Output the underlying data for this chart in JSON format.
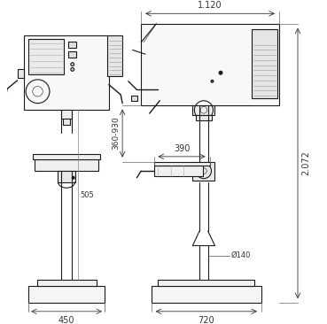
{
  "bg_color": "#ffffff",
  "line_color": "#1a1a1a",
  "dim_color": "#333333",
  "annotations": {
    "top_width": "1.120",
    "height": "2.072",
    "table_height": "360-930",
    "table_width": "390",
    "column_dia": "Ø140",
    "base_width_left": "450",
    "base_width_right": "720",
    "left_height": "505"
  },
  "lw_main": 0.8,
  "lw_dim": 0.6,
  "lw_thin": 0.4
}
